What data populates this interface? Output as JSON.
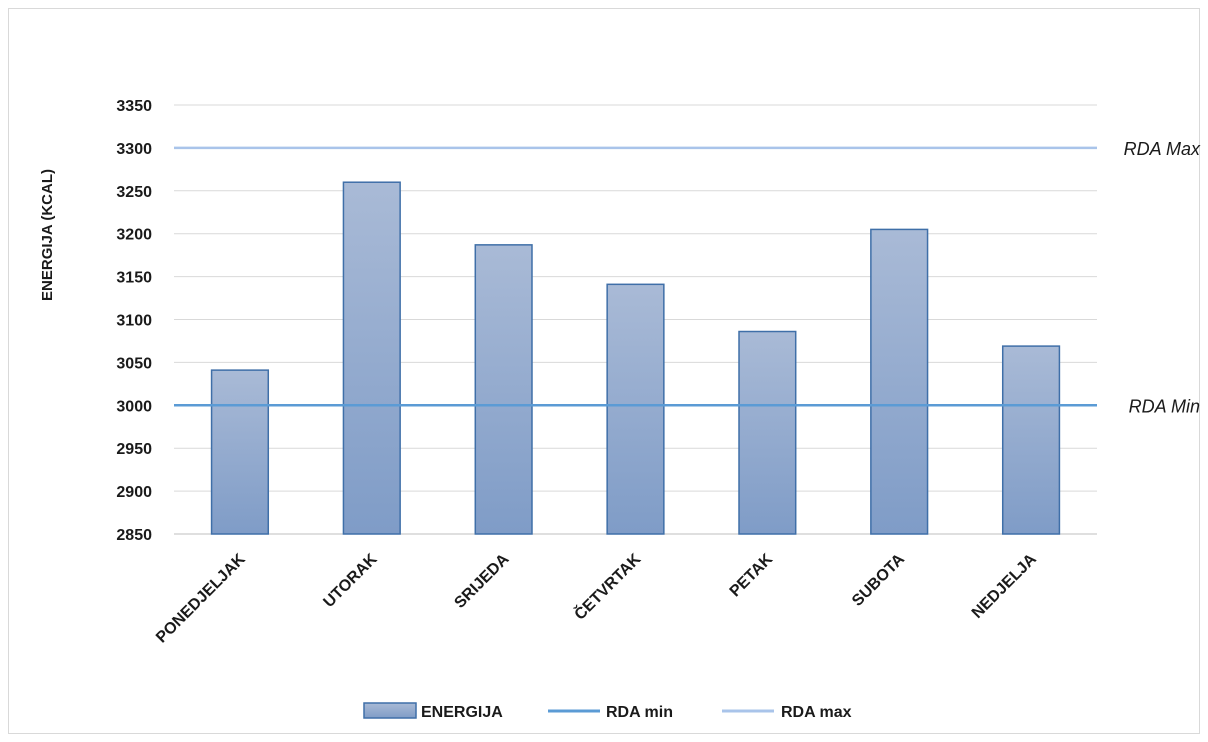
{
  "chart_data": {
    "type": "bar",
    "title": "",
    "xlabel": "",
    "ylabel": "ENERGIJA (KCAL)",
    "ylim": [
      2850,
      3350
    ],
    "yticks": [
      2850,
      2900,
      2950,
      3000,
      3050,
      3100,
      3150,
      3200,
      3250,
      3300,
      3350
    ],
    "grid": true,
    "categories": [
      "PONEDJELJAK",
      "UTORAK",
      "SRIJEDA",
      "ČETVRTAK",
      "PETAK",
      "SUBOTA",
      "NEDJELJA"
    ],
    "series": [
      {
        "name": "ENERGIJA",
        "values": [
          3041,
          3260,
          3187,
          3141,
          3086,
          3205,
          3069
        ],
        "color": "#8fa8cf"
      }
    ],
    "reference_lines": [
      {
        "name": "RDA min",
        "value": 3000,
        "label": "RDA Min",
        "color": "#5b9bd5"
      },
      {
        "name": "RDA max",
        "value": 3300,
        "label": "RDA Max",
        "color": "#a9c4ea"
      }
    ],
    "legend_position": "bottom"
  }
}
